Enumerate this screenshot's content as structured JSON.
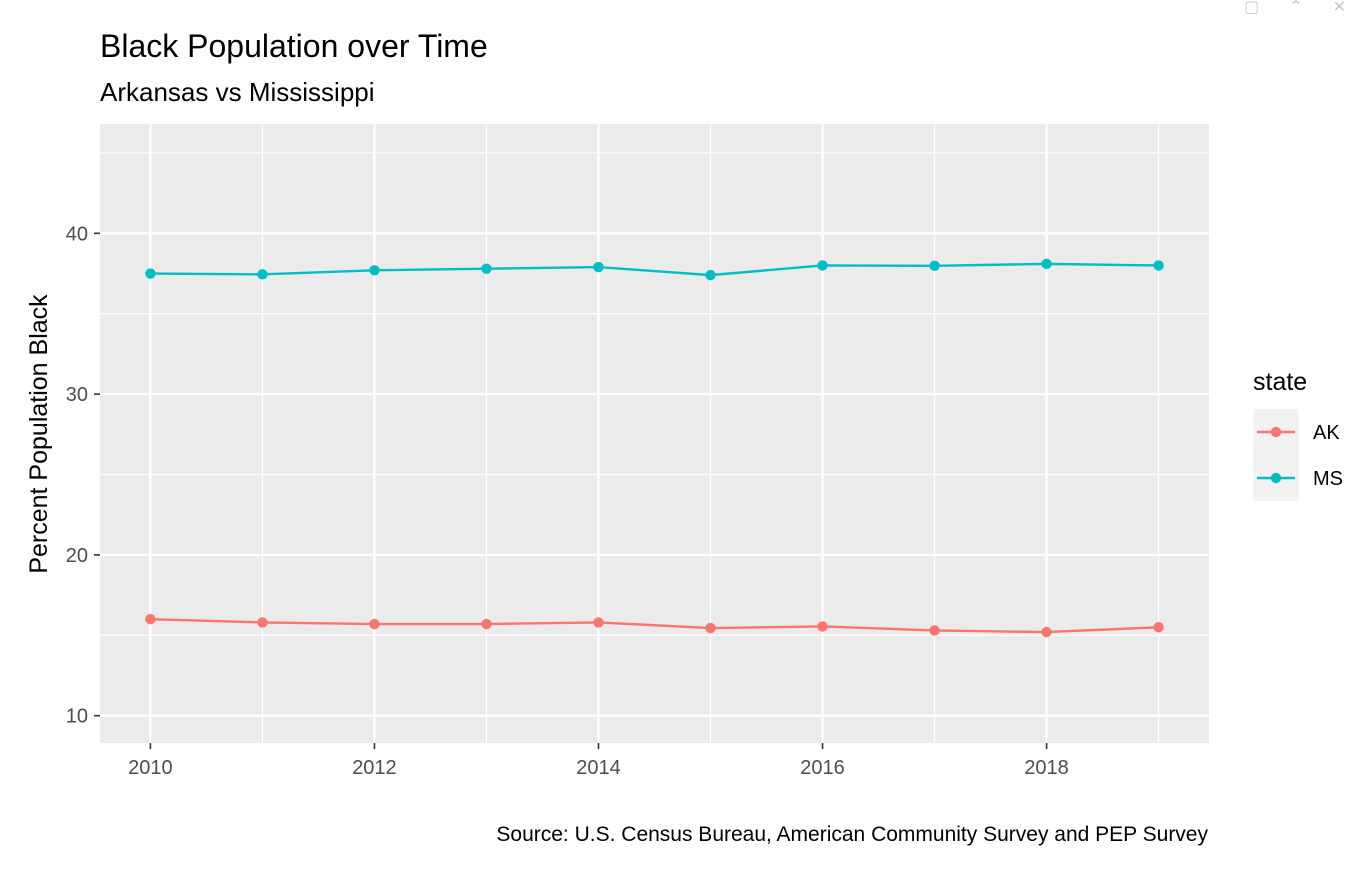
{
  "window": {
    "controls": [
      "restore-icon",
      "collapse-icon",
      "close-icon"
    ]
  },
  "chart_data": {
    "type": "line",
    "title": "Black Population over Time",
    "subtitle": "Arkansas vs Mississippi",
    "caption": "Source: U.S. Census Bureau, American Community Survey and PEP Survey",
    "xlabel": "",
    "ylabel": "Percent Population Black",
    "xlim": [
      2009.55,
      2019.45
    ],
    "ylim": [
      8.3,
      46.8
    ],
    "xticks": [
      2010,
      2012,
      2014,
      2016,
      2018
    ],
    "yticks": [
      10,
      20,
      30,
      40
    ],
    "x": [
      2010,
      2011,
      2012,
      2013,
      2014,
      2015,
      2016,
      2017,
      2018,
      2019
    ],
    "series": [
      {
        "name": "AK",
        "color": "#F8766D",
        "values": [
          16.0,
          15.8,
          15.7,
          15.7,
          15.8,
          15.45,
          15.55,
          15.3,
          15.2,
          15.5
        ]
      },
      {
        "name": "MS",
        "color": "#00BFC4",
        "values": [
          37.5,
          37.45,
          37.7,
          37.8,
          37.9,
          37.4,
          38.0,
          37.98,
          38.1,
          38.0
        ]
      }
    ],
    "legend": {
      "title": "state",
      "position": "right"
    },
    "grid": true,
    "panel_background": "#EBEBEB"
  }
}
